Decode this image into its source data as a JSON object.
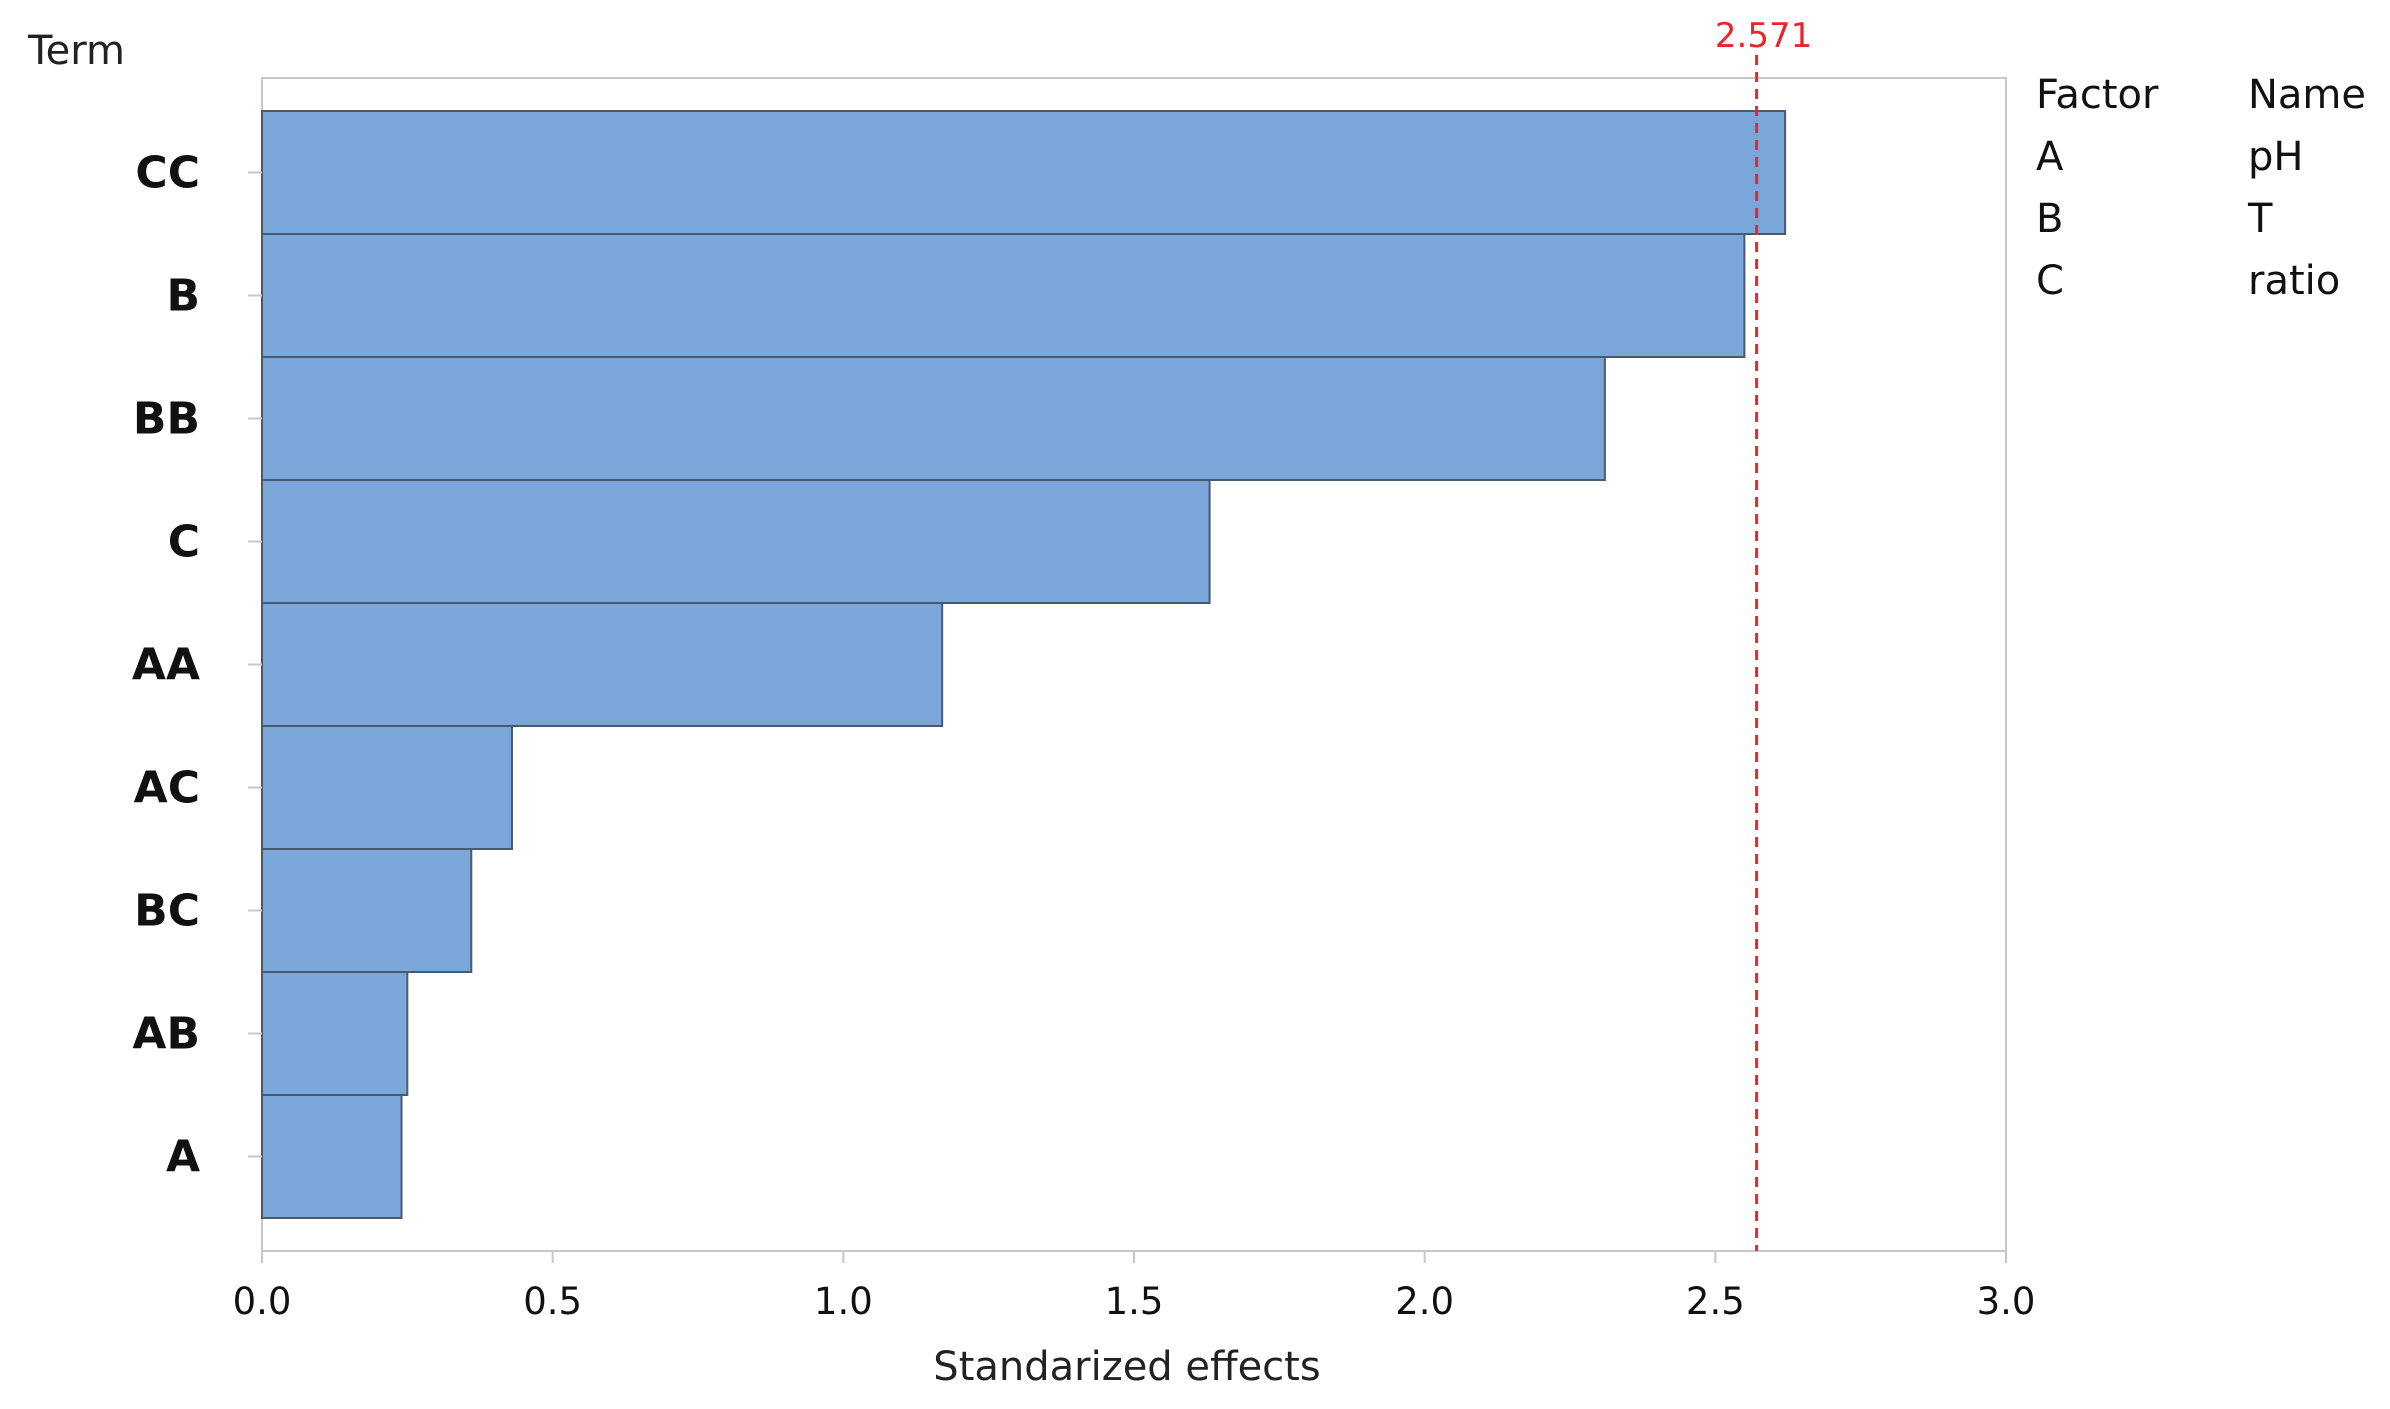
{
  "chart_data": {
    "type": "bar",
    "orientation": "horizontal",
    "ylabel": "Term",
    "xlabel": "Standarized effects",
    "categories": [
      "CC",
      "B",
      "BB",
      "C",
      "AA",
      "AC",
      "BC",
      "AB",
      "A"
    ],
    "values": [
      2.62,
      2.55,
      2.31,
      1.63,
      1.17,
      0.43,
      0.36,
      0.25,
      0.24
    ],
    "xlim": [
      0,
      3.0
    ],
    "xticks": [
      "0.0",
      "0.5",
      "1.0",
      "1.5",
      "2.0",
      "2.5",
      "3.0"
    ],
    "reference_line": {
      "value": 2.571,
      "label": "2.571",
      "color": "#e8262b",
      "style": "dashed"
    },
    "bar_color": "#7ba6d9",
    "bar_edge_color": "#4a5a6e",
    "grid": false
  },
  "legend": {
    "headers": [
      "Factor",
      "Name"
    ],
    "rows": [
      {
        "factor": "A",
        "name": "pH"
      },
      {
        "factor": "B",
        "name": "T"
      },
      {
        "factor": "C",
        "name": "ratio"
      }
    ]
  }
}
